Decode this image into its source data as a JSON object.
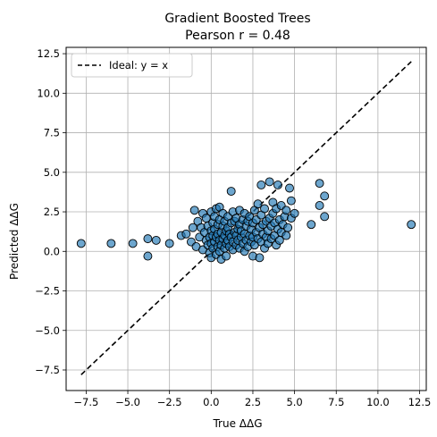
{
  "chart_data": {
    "type": "scatter",
    "title": "Gradient Boosted Trees",
    "subtitle": "Pearson r = 0.48",
    "xlabel": "True ΔΔG",
    "ylabel": "Predicted ΔΔG",
    "xlim": [
      -8.7,
      12.9
    ],
    "ylim": [
      -8.8,
      12.9
    ],
    "xticks": [
      -7.5,
      -5.0,
      -2.5,
      0.0,
      2.5,
      5.0,
      7.5,
      10.0,
      12.5
    ],
    "xtick_labels": [
      "−7.5",
      "−5.0",
      "−2.5",
      "0.0",
      "2.5",
      "5.0",
      "7.5",
      "10.0",
      "12.5"
    ],
    "yticks": [
      -7.5,
      -5.0,
      -2.5,
      0.0,
      2.5,
      5.0,
      7.5,
      10.0,
      12.5
    ],
    "ytick_labels": [
      "−7.5",
      "−5.0",
      "−2.5",
      "0.0",
      "2.5",
      "5.0",
      "7.5",
      "10.0",
      "12.5"
    ],
    "grid": true,
    "legend_position": "top-left",
    "point_color": "#1f77b4",
    "point_edge_color": "#000000",
    "ideal_line": {
      "label": "Ideal: y = x",
      "x": [
        -7.8,
        12.0
      ],
      "y": [
        -7.8,
        12.0
      ],
      "color": "#000000"
    },
    "points": [
      [
        -7.8,
        0.5
      ],
      [
        -6.0,
        0.5
      ],
      [
        -4.7,
        0.5
      ],
      [
        -3.8,
        0.8
      ],
      [
        -3.3,
        0.7
      ],
      [
        -3.8,
        -0.3
      ],
      [
        -2.5,
        0.5
      ],
      [
        -1.8,
        1.0
      ],
      [
        -1.5,
        1.1
      ],
      [
        -1.2,
        0.6
      ],
      [
        -1.1,
        1.5
      ],
      [
        -1.0,
        2.6
      ],
      [
        -0.9,
        0.3
      ],
      [
        -0.8,
        1.9
      ],
      [
        -0.7,
        0.9
      ],
      [
        -0.6,
        1.5
      ],
      [
        -0.5,
        2.4
      ],
      [
        -0.5,
        0.1
      ],
      [
        -0.4,
        1.2
      ],
      [
        -0.3,
        0.7
      ],
      [
        -0.3,
        2.1
      ],
      [
        -0.2,
        0.4
      ],
      [
        -0.2,
        1.6
      ],
      [
        -0.1,
        0.9
      ],
      [
        -0.1,
        -0.1
      ],
      [
        0.0,
        0.5
      ],
      [
        0.0,
        1.3
      ],
      [
        0.0,
        2.5
      ],
      [
        0.0,
        -0.4
      ],
      [
        0.1,
        0.2
      ],
      [
        0.1,
        1.0
      ],
      [
        0.1,
        1.8
      ],
      [
        0.2,
        0.6
      ],
      [
        0.2,
        1.4
      ],
      [
        0.2,
        2.2
      ],
      [
        0.3,
        -0.2
      ],
      [
        0.3,
        0.9
      ],
      [
        0.3,
        2.7
      ],
      [
        0.4,
        0.3
      ],
      [
        0.4,
        1.1
      ],
      [
        0.4,
        1.7
      ],
      [
        0.5,
        0.0
      ],
      [
        0.5,
        0.7
      ],
      [
        0.5,
        2.0
      ],
      [
        0.5,
        2.8
      ],
      [
        0.6,
        0.4
      ],
      [
        0.6,
        1.2
      ],
      [
        0.6,
        -0.5
      ],
      [
        0.7,
        0.8
      ],
      [
        0.7,
        1.6
      ],
      [
        0.7,
        2.4
      ],
      [
        0.8,
        0.2
      ],
      [
        0.8,
        1.0
      ],
      [
        0.8,
        1.9
      ],
      [
        0.9,
        0.5
      ],
      [
        0.9,
        1.3
      ],
      [
        0.9,
        -0.3
      ],
      [
        1.0,
        0.7
      ],
      [
        1.0,
        1.5
      ],
      [
        1.0,
        2.2
      ],
      [
        1.1,
        0.3
      ],
      [
        1.1,
        1.1
      ],
      [
        1.2,
        3.8
      ],
      [
        1.2,
        0.9
      ],
      [
        1.2,
        1.8
      ],
      [
        1.3,
        0.1
      ],
      [
        1.3,
        0.6
      ],
      [
        1.3,
        2.5
      ],
      [
        1.4,
        1.2
      ],
      [
        1.4,
        1.9
      ],
      [
        1.5,
        0.4
      ],
      [
        1.5,
        1.0
      ],
      [
        1.5,
        2.1
      ],
      [
        1.6,
        0.7
      ],
      [
        1.6,
        1.4
      ],
      [
        1.7,
        0.2
      ],
      [
        1.7,
        1.7
      ],
      [
        1.7,
        2.6
      ],
      [
        1.8,
        0.9
      ],
      [
        1.8,
        1.3
      ],
      [
        1.9,
        0.5
      ],
      [
        1.9,
        2.0
      ],
      [
        2.0,
        1.1
      ],
      [
        2.0,
        0.0
      ],
      [
        2.0,
        2.4
      ],
      [
        2.1,
        0.7
      ],
      [
        2.1,
        1.6
      ],
      [
        2.2,
        0.3
      ],
      [
        2.2,
        1.9
      ],
      [
        2.3,
        1.0
      ],
      [
        2.3,
        2.2
      ],
      [
        2.4,
        0.6
      ],
      [
        2.4,
        1.4
      ],
      [
        2.5,
        -0.3
      ],
      [
        2.5,
        0.9
      ],
      [
        2.5,
        1.8
      ],
      [
        2.6,
        2.6
      ],
      [
        2.6,
        0.4
      ],
      [
        2.7,
        1.2
      ],
      [
        2.7,
        2.0
      ],
      [
        2.8,
        0.8
      ],
      [
        2.8,
        3.0
      ],
      [
        2.9,
        1.5
      ],
      [
        2.9,
        -0.4
      ],
      [
        3.0,
        0.6
      ],
      [
        3.0,
        2.3
      ],
      [
        3.0,
        4.2
      ],
      [
        3.1,
        1.1
      ],
      [
        3.1,
        1.7
      ],
      [
        3.2,
        0.2
      ],
      [
        3.2,
        2.7
      ],
      [
        3.3,
        0.9
      ],
      [
        3.3,
        1.9
      ],
      [
        3.4,
        1.3
      ],
      [
        3.4,
        0.5
      ],
      [
        3.5,
        2.1
      ],
      [
        3.5,
        4.4
      ],
      [
        3.6,
        0.8
      ],
      [
        3.6,
        1.6
      ],
      [
        3.7,
        2.4
      ],
      [
        3.7,
        3.1
      ],
      [
        3.8,
        1.0
      ],
      [
        3.8,
        1.8
      ],
      [
        3.9,
        0.4
      ],
      [
        3.9,
        2.7
      ],
      [
        4.0,
        1.4
      ],
      [
        4.0,
        4.2
      ],
      [
        4.1,
        2.0
      ],
      [
        4.1,
        0.7
      ],
      [
        4.2,
        1.2
      ],
      [
        4.2,
        2.9
      ],
      [
        4.3,
        1.7
      ],
      [
        4.4,
        2.2
      ],
      [
        4.5,
        1.0
      ],
      [
        4.5,
        2.6
      ],
      [
        4.6,
        1.5
      ],
      [
        4.7,
        4.0
      ],
      [
        4.8,
        2.1
      ],
      [
        4.8,
        3.2
      ],
      [
        5.0,
        2.4
      ],
      [
        6.0,
        1.7
      ],
      [
        6.5,
        4.3
      ],
      [
        6.5,
        2.9
      ],
      [
        6.8,
        3.5
      ],
      [
        6.8,
        2.2
      ],
      [
        12.0,
        1.7
      ]
    ]
  }
}
